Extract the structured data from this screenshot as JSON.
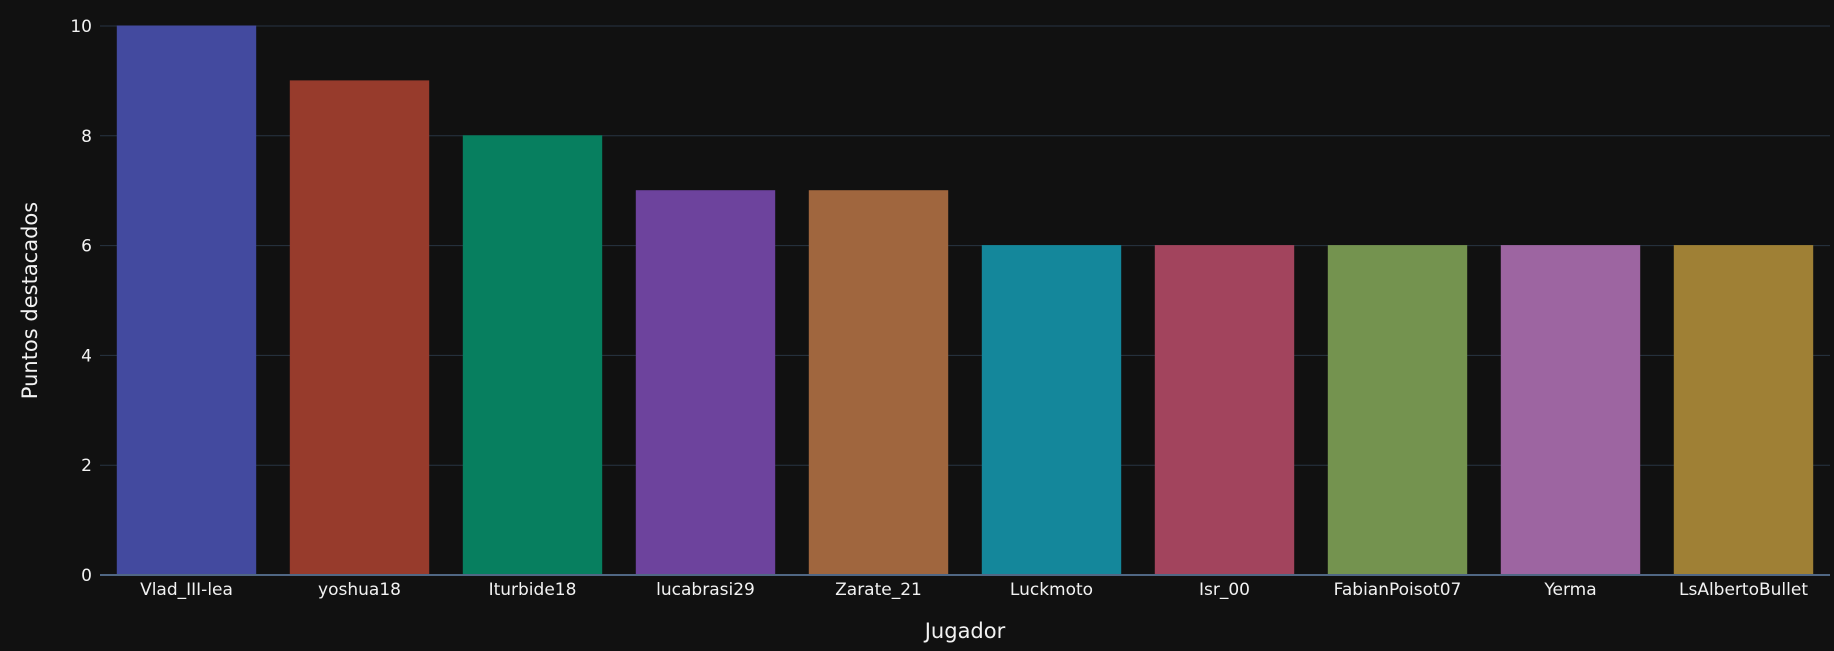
{
  "chart_data": {
    "type": "bar",
    "categories": [
      "Vlad_III-lea",
      "yoshua18",
      "Iturbide18",
      "lucabrasi29",
      "Zarate_21",
      "Luckmoto",
      "Isr_00",
      "FabianPoisot07",
      "Yerma",
      "LsAlbertoBullet"
    ],
    "values": [
      10,
      9,
      8,
      7,
      7,
      6,
      6,
      6,
      6,
      6
    ],
    "colors": [
      "#434a9f",
      "#973b2c",
      "#077f5f",
      "#6d439d",
      "#a0663e",
      "#14879b",
      "#a2445d",
      "#74934f",
      "#9d65a1",
      "#9f8035"
    ],
    "xlabel": "Jugador",
    "ylabel": "Puntos destacados",
    "ylim": [
      0,
      10
    ],
    "yticks": [
      0,
      2,
      4,
      6,
      8,
      10
    ],
    "grid": true,
    "background": "#111111"
  }
}
